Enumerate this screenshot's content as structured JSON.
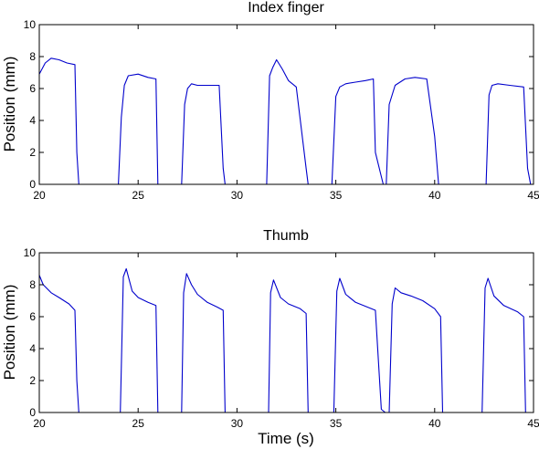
{
  "chart_data": [
    {
      "type": "line",
      "title": "Index finger",
      "xlabel": "",
      "ylabel": "Position (mm)",
      "xlim": [
        20,
        45
      ],
      "ylim": [
        0,
        10
      ],
      "xticks": [
        "20",
        "25",
        "30",
        "35",
        "40",
        "45"
      ],
      "yticks": [
        "0",
        "2",
        "4",
        "6",
        "8",
        "10"
      ],
      "grid": false,
      "color": "#0000cc",
      "series": [
        {
          "x": [
            20.0,
            20.3,
            20.6,
            21.0,
            21.4,
            21.8,
            21.9,
            22.0,
            24.0,
            24.15,
            24.3,
            24.5,
            25.0,
            25.5,
            25.9,
            26.0,
            27.2,
            27.35,
            27.5,
            27.7,
            28.0,
            28.6,
            29.1,
            29.3,
            29.4,
            31.5,
            31.65,
            31.8,
            32.0,
            32.3,
            32.6,
            33.0,
            33.5,
            33.6,
            34.8,
            35.0,
            35.2,
            35.5,
            36.0,
            36.5,
            36.9,
            37.0,
            37.4,
            37.55,
            37.7,
            38.0,
            38.5,
            39.0,
            39.6,
            40.0,
            40.2,
            42.6,
            42.75,
            42.9,
            43.2,
            43.8,
            44.5,
            44.7,
            44.85
          ],
          "y": [
            6.9,
            7.6,
            7.9,
            7.8,
            7.6,
            7.5,
            2.0,
            0.0,
            0.0,
            4.2,
            6.2,
            6.8,
            6.9,
            6.7,
            6.6,
            0.0,
            0.0,
            5.0,
            6.0,
            6.3,
            6.2,
            6.2,
            6.2,
            1.0,
            0.0,
            0.0,
            6.8,
            7.3,
            7.8,
            7.2,
            6.5,
            6.1,
            1.0,
            0.0,
            0.0,
            5.5,
            6.1,
            6.3,
            6.4,
            6.5,
            6.6,
            2.0,
            0.0,
            0.0,
            5.0,
            6.2,
            6.6,
            6.7,
            6.6,
            3.0,
            0.0,
            0.0,
            5.6,
            6.2,
            6.3,
            6.2,
            6.1,
            1.0,
            0.0
          ]
        }
      ]
    },
    {
      "type": "line",
      "title": "Thumb",
      "xlabel": "Time (s)",
      "ylabel": "Position (mm)",
      "xlim": [
        20,
        45
      ],
      "ylim": [
        0,
        10
      ],
      "xticks": [
        "20",
        "25",
        "30",
        "35",
        "40",
        "45"
      ],
      "yticks": [
        "0",
        "2",
        "4",
        "6",
        "8",
        "10"
      ],
      "grid": false,
      "color": "#0000cc",
      "series": [
        {
          "x": [
            20.0,
            20.2,
            20.6,
            21.0,
            21.5,
            21.8,
            21.9,
            22.0,
            24.1,
            24.25,
            24.4,
            24.7,
            25.0,
            25.5,
            25.9,
            26.0,
            27.2,
            27.3,
            27.45,
            27.7,
            28.0,
            28.5,
            29.0,
            29.3,
            29.4,
            31.6,
            31.7,
            31.85,
            32.2,
            32.6,
            33.2,
            33.5,
            33.6,
            34.9,
            35.05,
            35.2,
            35.5,
            36.0,
            36.6,
            37.0,
            37.3,
            37.5,
            37.7,
            37.85,
            38.0,
            38.3,
            38.8,
            39.4,
            40.0,
            40.3,
            40.4,
            42.4,
            42.55,
            42.7,
            43.0,
            43.5,
            44.2,
            44.5,
            44.6,
            45.0
          ],
          "y": [
            8.6,
            8.0,
            7.5,
            7.2,
            6.8,
            6.4,
            2.0,
            0.0,
            0.0,
            8.5,
            9.0,
            7.6,
            7.2,
            6.9,
            6.7,
            0.0,
            0.0,
            7.5,
            8.7,
            8.0,
            7.4,
            6.9,
            6.6,
            6.4,
            0.0,
            0.0,
            7.5,
            8.3,
            7.2,
            6.8,
            6.5,
            6.2,
            0.0,
            0.0,
            7.6,
            8.4,
            7.4,
            6.9,
            6.6,
            6.4,
            0.2,
            0.0,
            0.0,
            6.8,
            7.8,
            7.5,
            7.3,
            7.0,
            6.5,
            6.0,
            0.0,
            0.0,
            7.8,
            8.4,
            7.3,
            6.7,
            6.3,
            6.0,
            0.0,
            0.0
          ]
        }
      ]
    }
  ]
}
